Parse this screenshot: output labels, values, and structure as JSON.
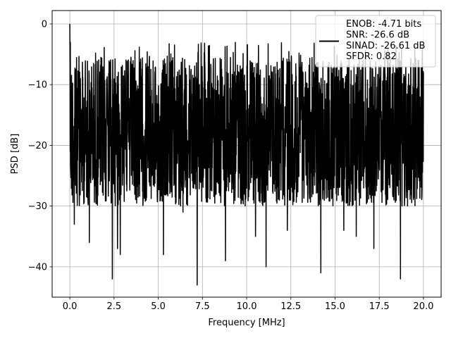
{
  "chart_data": {
    "type": "line",
    "title": "",
    "xlabel": "Frequency [MHz]",
    "ylabel": "PSD [dB]",
    "xlim": [
      -1,
      21
    ],
    "ylim": [
      -45,
      2.2
    ],
    "xticks": [
      0.0,
      2.5,
      5.0,
      7.5,
      10.0,
      12.5,
      15.0,
      17.5,
      20.0
    ],
    "xtick_labels": [
      "0.0",
      "2.5",
      "5.0",
      "7.5",
      "10.0",
      "12.5",
      "15.0",
      "17.5",
      "20.0"
    ],
    "yticks": [
      0,
      -10,
      -20,
      -30,
      -40
    ],
    "ytick_labels": [
      "0",
      "−10",
      "−20",
      "−30",
      "−40"
    ],
    "grid": true,
    "legend_position": "top-right",
    "legend_lines": [
      "ENOB: -4.71 bits",
      "SNR: -26.6 dB",
      "SINAD: -26.61 dB",
      "SFDR: 0.82"
    ],
    "series_color": "#000000",
    "series": [
      {
        "name": "ENOB: -4.71 bits SNR: -26.6 dB SINAD: -26.61 dB SFDR: 0.82",
        "x_range": [
          0,
          20
        ],
        "peak": {
          "x": 0.0,
          "y": 0
        },
        "noise_band": {
          "top": -5,
          "typical_low": -25,
          "bottom": -30
        },
        "notable_dips": [
          {
            "x": 0.25,
            "y": -33
          },
          {
            "x": 1.1,
            "y": -36
          },
          {
            "x": 2.4,
            "y": -42
          },
          {
            "x": 2.7,
            "y": -37
          },
          {
            "x": 2.85,
            "y": -38
          },
          {
            "x": 5.3,
            "y": -38
          },
          {
            "x": 6.4,
            "y": -31
          },
          {
            "x": 7.2,
            "y": -43
          },
          {
            "x": 8.8,
            "y": -39
          },
          {
            "x": 10.5,
            "y": -35
          },
          {
            "x": 11.1,
            "y": -40
          },
          {
            "x": 12.3,
            "y": -34
          },
          {
            "x": 14.2,
            "y": -41
          },
          {
            "x": 15.5,
            "y": -34
          },
          {
            "x": 16.2,
            "y": -35
          },
          {
            "x": 17.2,
            "y": -37
          },
          {
            "x": 18.7,
            "y": -42
          }
        ]
      }
    ]
  }
}
